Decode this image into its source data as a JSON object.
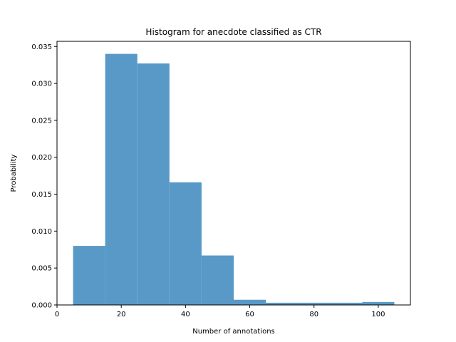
{
  "chart_data": {
    "type": "bar",
    "subtype": "histogram",
    "title": "Histogram for anecdote classified as CTR",
    "xlabel": "Number of annotations",
    "ylabel": "Probability",
    "xlim": [
      0,
      110
    ],
    "ylim": [
      0,
      0.0357
    ],
    "xticks": [
      0,
      20,
      40,
      60,
      80,
      100
    ],
    "xtick_labels": [
      "0",
      "20",
      "40",
      "60",
      "80",
      "100"
    ],
    "yticks": [
      0,
      0.005,
      0.01,
      0.015,
      0.02,
      0.025,
      0.03,
      0.035
    ],
    "ytick_labels": [
      "0.000",
      "0.005",
      "0.010",
      "0.015",
      "0.020",
      "0.025",
      "0.030",
      "0.035"
    ],
    "bins": [
      {
        "x0": 5,
        "x1": 15,
        "value": 0.008
      },
      {
        "x0": 15,
        "x1": 25,
        "value": 0.034
      },
      {
        "x0": 25,
        "x1": 35,
        "value": 0.0327
      },
      {
        "x0": 35,
        "x1": 45,
        "value": 0.0166
      },
      {
        "x0": 45,
        "x1": 55,
        "value": 0.0067
      },
      {
        "x0": 55,
        "x1": 65,
        "value": 0.0007
      },
      {
        "x0": 65,
        "x1": 75,
        "value": 0.0003
      },
      {
        "x0": 75,
        "x1": 85,
        "value": 0.0003
      },
      {
        "x0": 85,
        "x1": 95,
        "value": 0.0003
      },
      {
        "x0": 95,
        "x1": 105,
        "value": 0.0004
      }
    ],
    "bar_color": "#5899c7",
    "grid": false,
    "legend": "none"
  }
}
